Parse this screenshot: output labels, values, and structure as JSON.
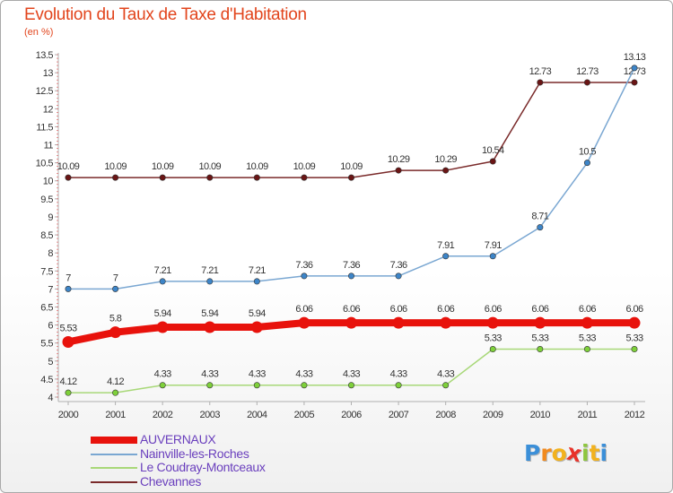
{
  "title": "Evolution du Taux de Taxe d'Habitation",
  "subtitle": "(en %)",
  "logo": {
    "letters": [
      "P",
      "r",
      "o",
      "x",
      "i",
      "t",
      "i"
    ],
    "colors": [
      "#3b8fd8",
      "#f28a1e",
      "#f2b21e",
      "#e8322a",
      "#8ec63f",
      "#f2b21e",
      "#3b8fd8"
    ]
  },
  "chart_data": {
    "type": "line",
    "title": "Evolution du Taux de Taxe d'Habitation",
    "ylabel": "(en %)",
    "x": [
      "2000",
      "2001",
      "2002",
      "2003",
      "2004",
      "2005",
      "2006",
      "2007",
      "2008",
      "2009",
      "2010",
      "2011",
      "2012"
    ],
    "ylim": [
      4,
      13.5
    ],
    "yticks": [
      "4",
      "4.5",
      "5",
      "5.5",
      "6",
      "6.5",
      "7",
      "7.5",
      "8",
      "8.5",
      "9",
      "9.5",
      "10",
      "10.5",
      "11",
      "11.5",
      "12",
      "12.5",
      "13",
      "13.5"
    ],
    "grid": false,
    "legend_position": "bottom-left",
    "series": [
      {
        "name": "AUVERNAUX",
        "color": "#e8120c",
        "width": 8,
        "values": [
          5.53,
          5.8,
          5.94,
          5.94,
          5.94,
          6.06,
          6.06,
          6.06,
          6.06,
          6.06,
          6.06,
          6.06,
          6.06
        ],
        "labels": [
          "5.53",
          "5.8",
          "5.94",
          "5.94",
          "5.94",
          "6.06",
          "6.06",
          "6.06",
          "6.06",
          "6.06",
          "6.06",
          "6.06",
          "6.06"
        ]
      },
      {
        "name": "Nainville-les-Roches",
        "color": "#7aa7d2",
        "width": 1.5,
        "marker": "#3d85c8",
        "values": [
          7,
          7,
          7.21,
          7.21,
          7.21,
          7.36,
          7.36,
          7.36,
          7.91,
          7.91,
          8.71,
          10.5,
          13.13
        ],
        "labels": [
          "7",
          "7",
          "7.21",
          "7.21",
          "7.21",
          "7.36",
          "7.36",
          "7.36",
          "7.91",
          "7.91",
          "8.71",
          "10.5",
          "13.13"
        ]
      },
      {
        "name": "Le Coudray-Montceaux",
        "color": "#a8d878",
        "width": 1.5,
        "marker": "#7ed03a",
        "values": [
          4.12,
          4.12,
          4.33,
          4.33,
          4.33,
          4.33,
          4.33,
          4.33,
          4.33,
          5.33,
          5.33,
          5.33,
          5.33
        ],
        "labels": [
          "4.12",
          "4.12",
          "4.33",
          "4.33",
          "4.33",
          "4.33",
          "4.33",
          "4.33",
          "4.33",
          "5.33",
          "5.33",
          "5.33",
          "5.33"
        ]
      },
      {
        "name": "Chevannes",
        "color": "#7a2a2a",
        "width": 1.5,
        "marker": "#6a1515",
        "values": [
          10.09,
          10.09,
          10.09,
          10.09,
          10.09,
          10.09,
          10.09,
          10.29,
          10.29,
          10.54,
          12.73,
          12.73,
          12.73
        ],
        "labels": [
          "10.09",
          "10.09",
          "10.09",
          "10.09",
          "10.09",
          "10.09",
          "10.09",
          "10.29",
          "10.29",
          "10.54",
          "12.73",
          "12.73",
          "12.73"
        ]
      }
    ]
  }
}
